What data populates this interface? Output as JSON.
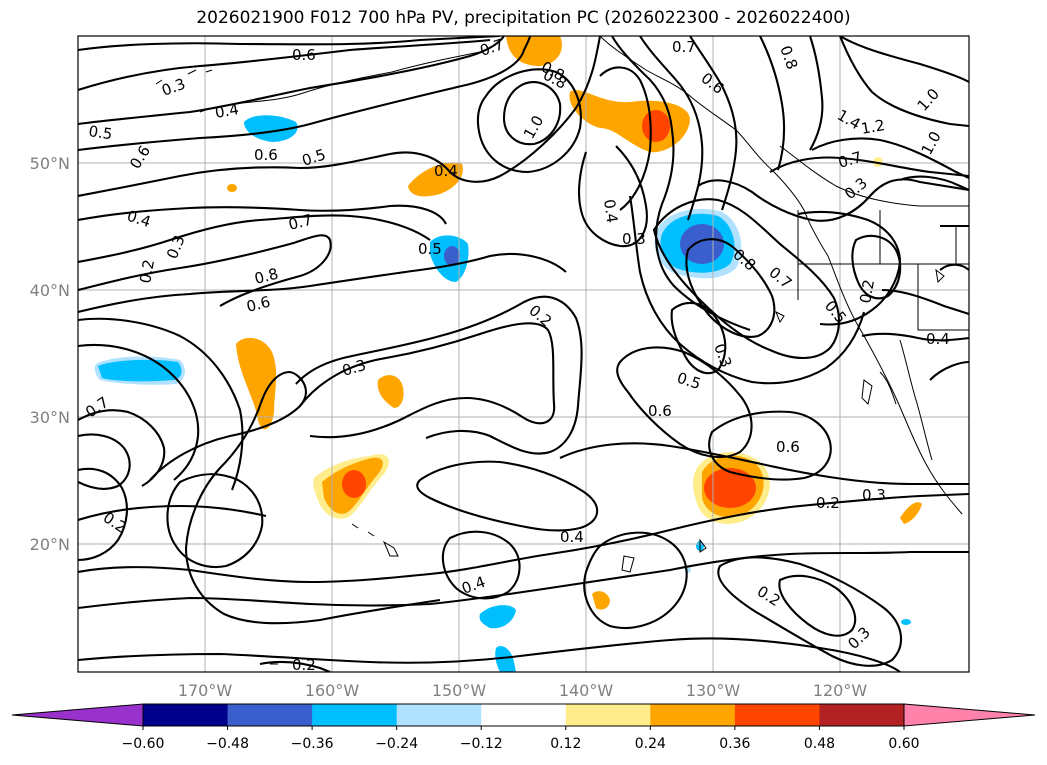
{
  "title": "2026021900 F012 700 hPa PV, precipitation PC (2026022300 - 2026022400)",
  "map": {
    "lat_labels": [
      "50°N",
      "40°N",
      "30°N",
      "20°N"
    ],
    "lon_labels": [
      "170°W",
      "160°W",
      "150°W",
      "140°W",
      "130°W",
      "120°W"
    ],
    "contour_labels": [
      "0.6",
      "0.7",
      "0.8",
      "0.7",
      "0.8",
      "0.3",
      "0.4",
      "0.5",
      "0.6",
      "0.5",
      "0.6",
      "0.4",
      "1.0",
      "0.8",
      "0.6",
      "1.4",
      "1.2",
      "1.0",
      "1.0",
      "0.7",
      "0.4",
      "0.3",
      "0.4",
      "0.3",
      "0.5",
      "0.2",
      "0.3",
      "0.7",
      "0.8",
      "0.6",
      "0.8",
      "0.7",
      "0.5",
      "0.2",
      "0.2",
      "0.4",
      "0.3",
      "0.7",
      "0.3",
      "0.5",
      "0.6",
      "0.6",
      "0.2",
      "0.3",
      "0.2",
      "0.4",
      "0.4",
      "0.2",
      "0.3",
      "0.2"
    ]
  },
  "colorbar": {
    "colors": [
      "#9932cc",
      "#00008b",
      "#3a5fcd",
      "#00bfff",
      "#b0e2ff",
      "#ffffff",
      "#ffec8b",
      "#ffa500",
      "#ff4500",
      "#b22222",
      "#ff82ab"
    ],
    "tick_labels": [
      "−0.60",
      "−0.48",
      "−0.36",
      "−0.24",
      "−0.12",
      "0.12",
      "0.24",
      "0.36",
      "0.48",
      "0.60"
    ]
  }
}
